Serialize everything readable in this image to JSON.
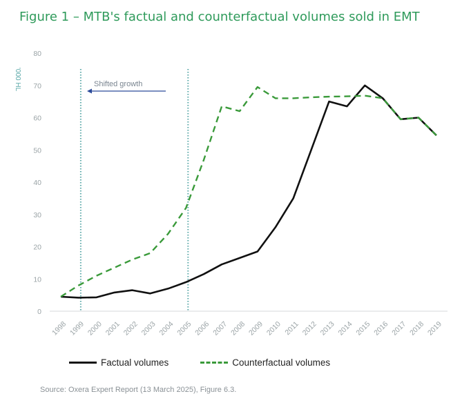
{
  "figure_title": "Figure 1 – MTB's factual and counterfactual volumes sold in EMT",
  "source": "Source: Oxera Expert Report (13 March 2025), Figure 6.3.",
  "colors": {
    "title": "#2e9a5a",
    "factual": "#111111",
    "counterfactual": "#3a9a3a",
    "marker_line": "#5aa8a8",
    "arrow": "#2b4a9a"
  },
  "chart_data": {
    "type": "line",
    "title": "",
    "xlabel": "",
    "ylabel": "'000 HL",
    "ylim": [
      0,
      80
    ],
    "yticks": [
      0,
      10,
      20,
      30,
      40,
      50,
      60,
      70,
      80
    ],
    "x": [
      "1998",
      "1999",
      "2000",
      "2001",
      "2002",
      "2003",
      "2004",
      "2005",
      "2006",
      "2007",
      "2008",
      "2009",
      "2010",
      "2011",
      "2012",
      "2013",
      "2014",
      "2015",
      "2016",
      "2017",
      "2018",
      "2019"
    ],
    "series": [
      {
        "name": "Factual volumes",
        "style": "solid",
        "values": [
          4.5,
          4.2,
          4.3,
          5.8,
          6.5,
          5.5,
          7,
          9,
          11.5,
          14.5,
          16.5,
          18.5,
          26,
          35,
          50,
          65,
          63.5,
          70,
          66,
          59.5,
          60,
          54.5
        ]
      },
      {
        "name": "Counterfactual volumes",
        "style": "dashed",
        "values": [
          4.5,
          8,
          11,
          13.5,
          16,
          18,
          24,
          32,
          47,
          63.5,
          62,
          69.5,
          66,
          66,
          66.3,
          66.5,
          66.6,
          66.8,
          66,
          59.5,
          60,
          54.5
        ]
      }
    ],
    "vertical_markers": [
      "1999",
      "2005"
    ],
    "annotation": {
      "text": "Shifted growth",
      "arrow": "left"
    },
    "grid": false,
    "legend_position": "bottom"
  }
}
